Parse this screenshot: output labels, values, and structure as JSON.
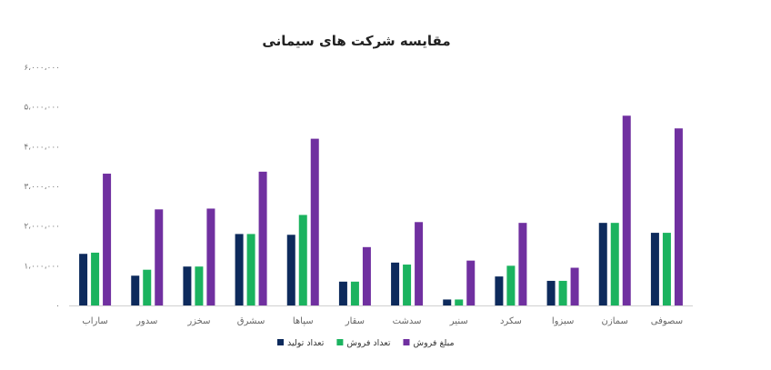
{
  "chart_data": {
    "type": "bar",
    "title": "مقایسه شرکت های سیمانی",
    "categories": [
      "ساراب",
      "سدور",
      "سخزر",
      "سشرق",
      "سپاها",
      "سقار",
      "سدشت",
      "سنیر",
      "سکرد",
      "سبزوا",
      "سمازن",
      "سصوفی"
    ],
    "series": [
      {
        "name": "تعداد تولید",
        "color": "#0d2a5c",
        "values": [
          1300000,
          750000,
          980000,
          1800000,
          1780000,
          600000,
          1080000,
          150000,
          730000,
          620000,
          2080000,
          1830000
        ]
      },
      {
        "name": "تعداد فروش",
        "color": "#1bb35f",
        "values": [
          1330000,
          900000,
          980000,
          1800000,
          2280000,
          600000,
          1030000,
          150000,
          1000000,
          620000,
          2080000,
          1830000
        ]
      },
      {
        "name": "مبلغ فروش",
        "color": "#7030a0",
        "values": [
          3320000,
          2420000,
          2440000,
          3370000,
          4200000,
          1470000,
          2100000,
          1130000,
          2080000,
          950000,
          4780000,
          4460000
        ]
      }
    ],
    "yticks": [
      {
        "value": 0,
        "label": "۰"
      },
      {
        "value": 1000000,
        "label": "۱،۰۰۰،۰۰۰"
      },
      {
        "value": 2000000,
        "label": "۲،۰۰۰،۰۰۰"
      },
      {
        "value": 3000000,
        "label": "۳،۰۰۰،۰۰۰"
      },
      {
        "value": 4000000,
        "label": "۴،۰۰۰،۰۰۰"
      },
      {
        "value": 5000000,
        "label": "۵،۰۰۰،۰۰۰"
      },
      {
        "value": 6000000,
        "label": "۶،۰۰۰،۰۰۰"
      }
    ],
    "ylim": [
      0,
      6000000
    ],
    "grid": false,
    "legend": "bottom"
  }
}
